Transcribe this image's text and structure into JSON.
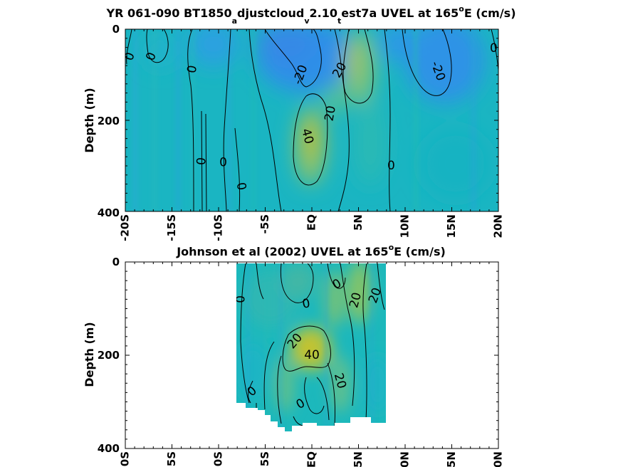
{
  "chart_data": [
    {
      "type": "heatmap",
      "title": "YR 061-090 BT1850",
      "title_sub1": "a",
      "title_mid1": "djustcloud",
      "title_sub2": "v",
      "title_mid2": "2.10",
      "title_sub3": "t",
      "title_mid3": "est7a UVEL at 165",
      "title_sup": "o",
      "title_end": "E (cm/s)",
      "ylabel": "Depth (m)",
      "xlim": [
        -20,
        20
      ],
      "ylim": [
        400,
        0
      ],
      "x_ticks": [
        "-20S",
        "-15S",
        "-10S",
        "-5S",
        "EQ",
        "5N",
        "10N",
        "15N",
        "20N"
      ],
      "y_ticks": [
        "0",
        "200",
        "400"
      ],
      "colors": {
        "low": "#3a8fe6",
        "mid": "#1ab8c0",
        "high": "#c2c128"
      },
      "features": [
        {
          "lat": 0,
          "depth": 210,
          "value": 45
        },
        {
          "lat": 5,
          "depth": 60,
          "value": 25
        },
        {
          "lat": -3,
          "depth": 40,
          "value": -22
        },
        {
          "lat": 12,
          "depth": 60,
          "value": -22
        },
        {
          "lat": -10,
          "depth": 40,
          "value": -5
        }
      ],
      "contour_labels": [
        {
          "text": "0",
          "lat": -19.5,
          "depth": 60,
          "rotate": -70
        },
        {
          "text": "0",
          "lat": -17.2,
          "depth": 60,
          "rotate": -70
        },
        {
          "text": "0",
          "lat": -12.8,
          "depth": 88,
          "rotate": -80
        },
        {
          "text": "-20",
          "lat": -1.2,
          "depth": 100,
          "rotate": -70
        },
        {
          "text": "20",
          "lat": 3,
          "depth": 90,
          "rotate": -60
        },
        {
          "text": "-20",
          "lat": 13.5,
          "depth": 92,
          "rotate": 70
        },
        {
          "text": "0",
          "lat": 19.5,
          "depth": 42,
          "rotate": 0
        },
        {
          "text": "20",
          "lat": 2,
          "depth": 185,
          "rotate": -80
        },
        {
          "text": "40",
          "lat": -0.5,
          "depth": 235,
          "rotate": 75
        },
        {
          "text": "0",
          "lat": -11.8,
          "depth": 290,
          "rotate": -85
        },
        {
          "text": "0",
          "lat": -9.5,
          "depth": 293,
          "rotate": 0
        },
        {
          "text": "0",
          "lat": -7.6,
          "depth": 345,
          "rotate": 80
        },
        {
          "text": "0",
          "lat": 8.5,
          "depth": 300,
          "rotate": 0
        }
      ]
    },
    {
      "type": "heatmap",
      "title": "Johnson et al (2002) UVEL at 165",
      "title_sup": "o",
      "title_end": "E (cm/s)",
      "ylabel": "Depth (m)",
      "xlim": [
        -20,
        20
      ],
      "ylim": [
        400,
        0
      ],
      "x_ticks": [
        "-20S",
        "-15S",
        "-10S",
        "-5S",
        "EQ",
        "5N",
        "10N",
        "15N",
        "20N"
      ],
      "y_ticks": [
        "0",
        "200",
        "400"
      ],
      "data_lat_range": [
        -8,
        8
      ],
      "colors": {
        "low": "#3a8fe6",
        "mid": "#1ab8c0",
        "high": "#c2c128"
      },
      "features": [
        {
          "lat": 0,
          "depth": 190,
          "value": 42
        },
        {
          "lat": 4,
          "depth": 60,
          "value": 22
        },
        {
          "lat": 6,
          "depth": 100,
          "value": 20
        },
        {
          "lat": -5,
          "depth": 80,
          "value": 2
        }
      ],
      "contour_labels": [
        {
          "text": "0",
          "lat": -7.6,
          "depth": 80,
          "rotate": -90
        },
        {
          "text": "0",
          "lat": -0.6,
          "depth": 90,
          "rotate": -10
        },
        {
          "text": "0",
          "lat": 2.7,
          "depth": 48,
          "rotate": -30
        },
        {
          "text": "20",
          "lat": 4.7,
          "depth": 82,
          "rotate": -75
        },
        {
          "text": "20",
          "lat": 6.8,
          "depth": 72,
          "rotate": -70
        },
        {
          "text": "20",
          "lat": -1.8,
          "depth": 170,
          "rotate": -50
        },
        {
          "text": "40",
          "lat": 0,
          "depth": 200,
          "rotate": 0
        },
        {
          "text": "20",
          "lat": 3,
          "depth": 255,
          "rotate": 75
        },
        {
          "text": "0",
          "lat": -6.4,
          "depth": 278,
          "rotate": -40
        },
        {
          "text": "0",
          "lat": -1.2,
          "depth": 305,
          "rotate": -30
        }
      ]
    }
  ]
}
